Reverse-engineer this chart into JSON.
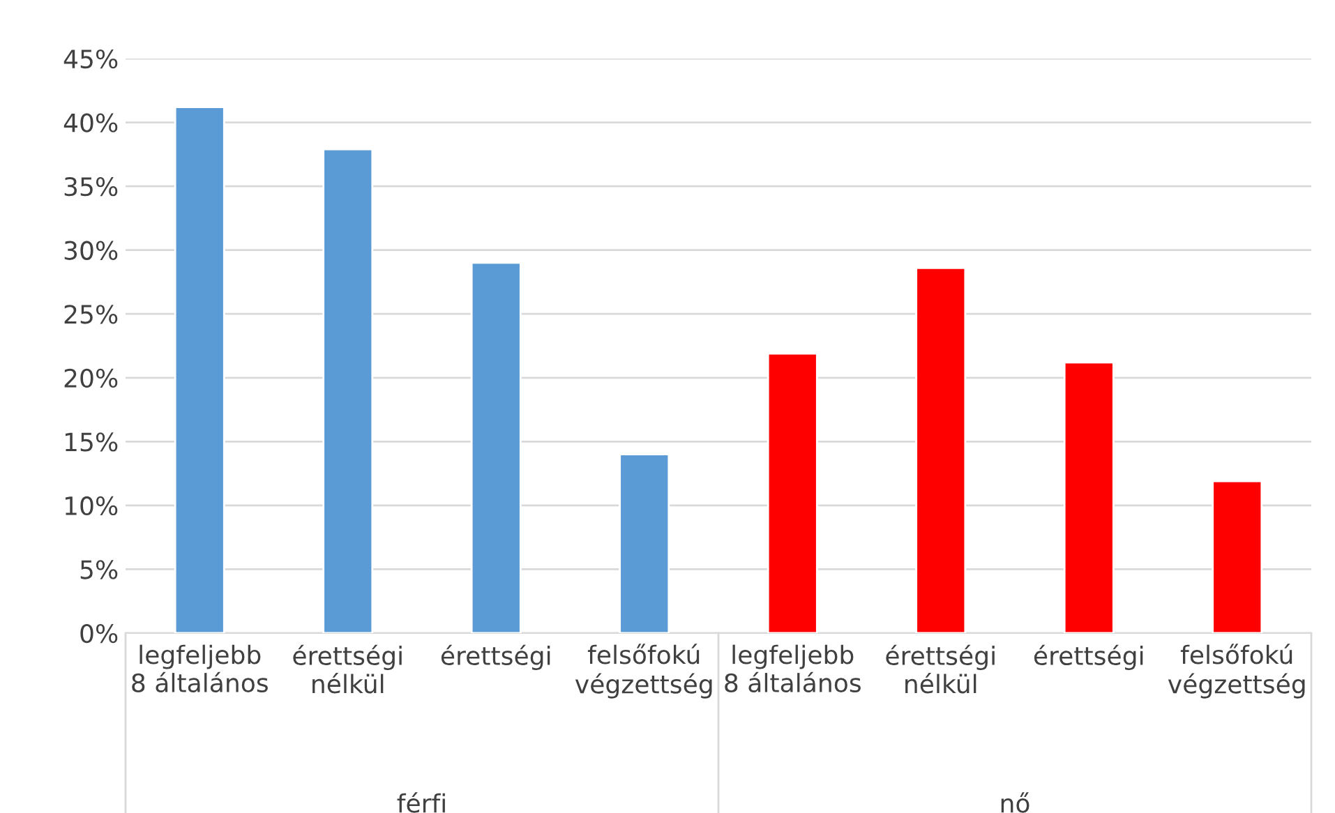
{
  "chart_data": {
    "type": "bar",
    "categories": [
      "legfeljebb\n8 általános",
      "érettségi\nnélkül",
      "érettségi",
      "felsőfokú\nvégzettség",
      "legfeljebb\n8 általános",
      "érettségi\nnélkül",
      "érettségi",
      "felsőfokú\nvégzettség"
    ],
    "values": [
      41.2,
      37.9,
      29.0,
      14.0,
      21.9,
      28.6,
      21.2,
      11.9
    ],
    "colors": [
      "#5b9bd5",
      "#5b9bd5",
      "#5b9bd5",
      "#5b9bd5",
      "#ff0000",
      "#ff0000",
      "#ff0000",
      "#ff0000"
    ],
    "annotations": [
      "férfi",
      "nő"
    ],
    "ylim": [
      0,
      45
    ],
    "yticks": [
      {
        "value": 0,
        "label": "0%"
      },
      {
        "value": 5,
        "label": "5%"
      },
      {
        "value": 10,
        "label": "10%"
      },
      {
        "value": 15,
        "label": "15%"
      },
      {
        "value": 20,
        "label": "20%"
      },
      {
        "value": 25,
        "label": "25%"
      },
      {
        "value": 30,
        "label": "30%"
      },
      {
        "value": 35,
        "label": "35%"
      },
      {
        "value": 40,
        "label": "40%"
      },
      {
        "value": 45,
        "label": "45%"
      }
    ],
    "grid": "y"
  }
}
